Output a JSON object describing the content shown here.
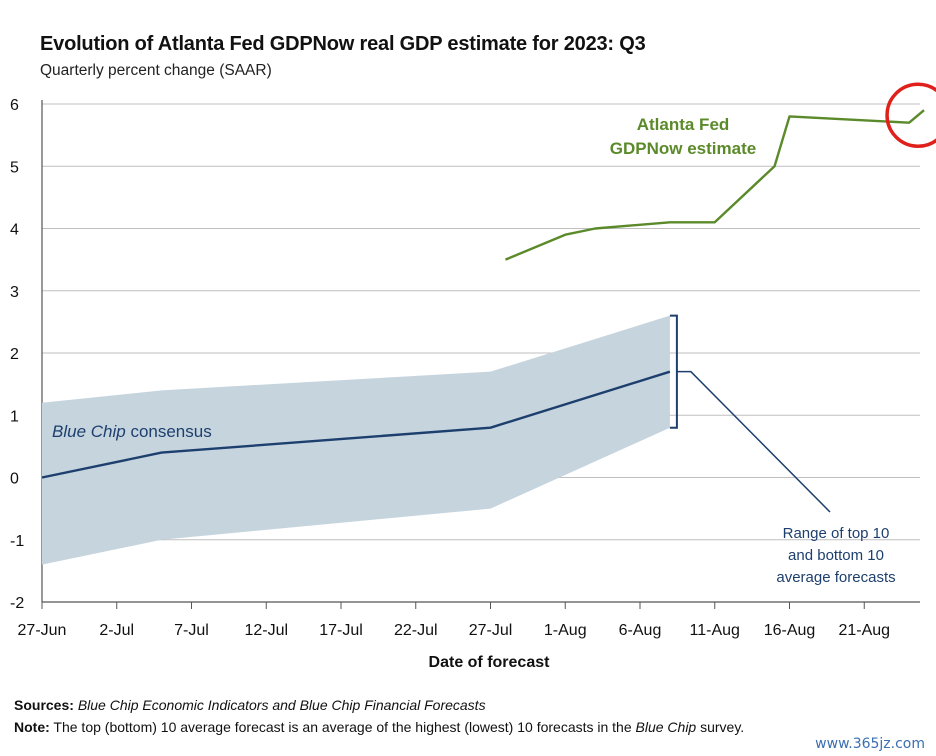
{
  "title": "Evolution of Atlanta Fed GDPNow real GDP estimate for 2023: Q3",
  "subtitle": "Quarterly percent change (SAAR)",
  "chart_data": {
    "type": "line",
    "xlabel": "Date of forecast",
    "ylabel": "",
    "ylim": [
      -2,
      6
    ],
    "y_ticks": [
      "6",
      "5",
      "4",
      "3",
      "2",
      "1",
      "0",
      "-1",
      "-2"
    ],
    "x_tick_labels": [
      "27-Jun",
      "2-Jul",
      "7-Jul",
      "12-Jul",
      "17-Jul",
      "22-Jul",
      "27-Jul",
      "1-Aug",
      "6-Aug",
      "11-Aug",
      "16-Aug",
      "21-Aug"
    ],
    "grid": "horizontal",
    "series": [
      {
        "name": "Atlanta Fed GDPNow estimate",
        "color": "#5b8a2a",
        "points": [
          {
            "x": "2023-07-28",
            "y": 3.5
          },
          {
            "x": "2023-08-01",
            "y": 3.9
          },
          {
            "x": "2023-08-03",
            "y": 4.0
          },
          {
            "x": "2023-08-08",
            "y": 4.1
          },
          {
            "x": "2023-08-11",
            "y": 4.1
          },
          {
            "x": "2023-08-15",
            "y": 5.0
          },
          {
            "x": "2023-08-16",
            "y": 5.8
          },
          {
            "x": "2023-08-24",
            "y": 5.7
          },
          {
            "x": "2023-08-25",
            "y": 5.9
          }
        ]
      },
      {
        "name": "Blue Chip consensus",
        "color": "#1d3f6e",
        "points": [
          {
            "x": "2023-06-27",
            "y": 0.0
          },
          {
            "x": "2023-07-05",
            "y": 0.4
          },
          {
            "x": "2023-07-27",
            "y": 0.8
          },
          {
            "x": "2023-08-08",
            "y": 1.7
          }
        ]
      }
    ],
    "range_band": {
      "name": "Range of top 10 and bottom 10 average forecasts",
      "color": "#c6d4de",
      "upper": [
        {
          "x": "2023-06-27",
          "y": 1.2
        },
        {
          "x": "2023-07-05",
          "y": 1.4
        },
        {
          "x": "2023-07-27",
          "y": 1.7
        },
        {
          "x": "2023-08-08",
          "y": 2.6
        }
      ],
      "lower": [
        {
          "x": "2023-06-27",
          "y": -1.4
        },
        {
          "x": "2023-07-05",
          "y": -1.0
        },
        {
          "x": "2023-07-27",
          "y": -0.5
        },
        {
          "x": "2023-08-08",
          "y": 0.8
        }
      ]
    },
    "annotations": {
      "gdpnow_label": [
        "Atlanta Fed",
        "GDPNow estimate"
      ],
      "bluechip_label_italic": "Blue Chip",
      "bluechip_label_rest": " consensus",
      "range_label": [
        "Range of top 10",
        "and bottom 10",
        "average forecasts"
      ],
      "highlight_circle_color": "#e0201b"
    }
  },
  "footer": {
    "sources_label": "Sources:",
    "sources_text": "Blue Chip Economic Indicators and Blue Chip Financial Forecasts",
    "note_label": "Note:",
    "note_text_1": "The top (bottom) 10 average forecast is an average of the highest (lowest) 10 forecasts in the ",
    "note_italic": "Blue Chip",
    "note_text_2": " survey."
  },
  "watermark": "www.365jz.com"
}
